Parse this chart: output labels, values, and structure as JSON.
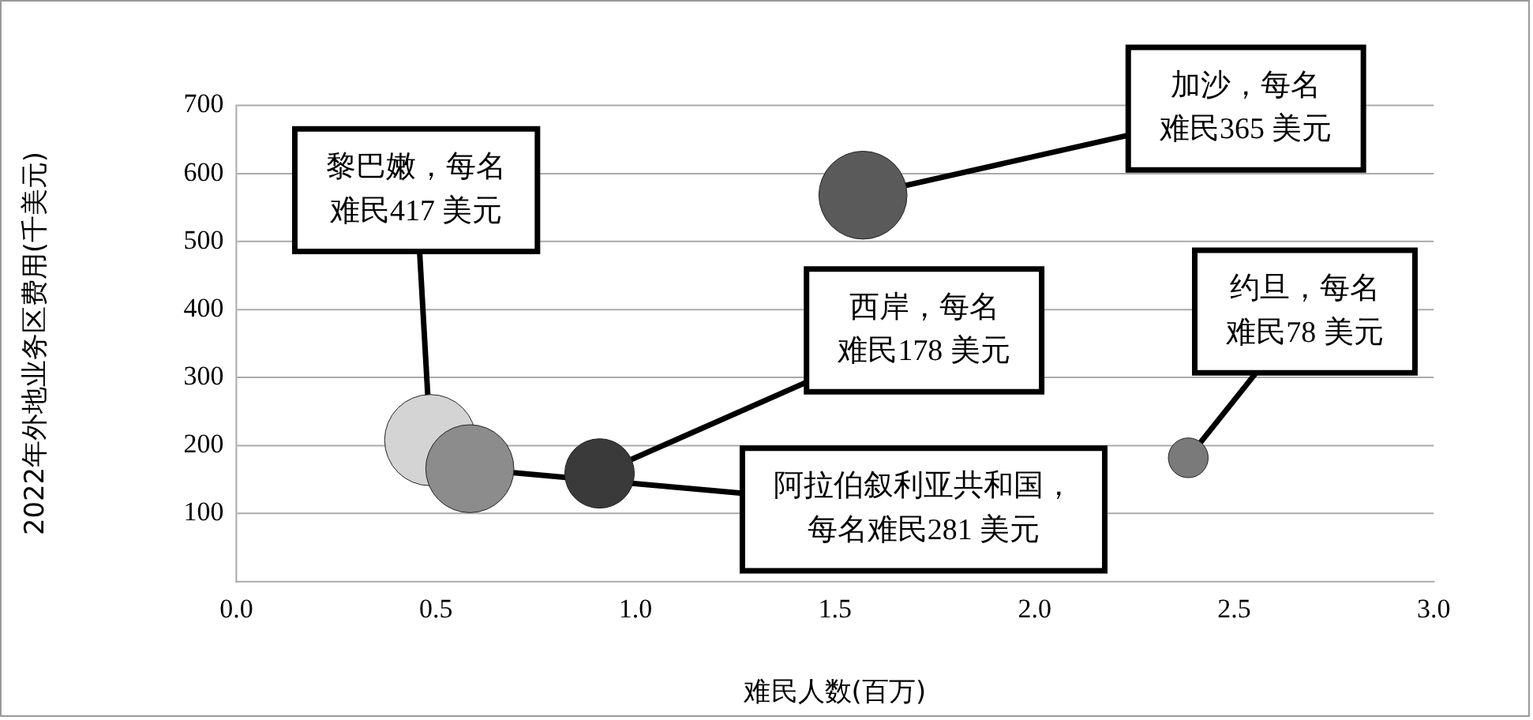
{
  "chart_data": {
    "type": "bubble",
    "xlabel": "难民人数(百万)",
    "ylabel": "2022年外地业务区费用(千美元)",
    "x": [
      0.486,
      0.585,
      0.91,
      1.57,
      2.385
    ],
    "values": [
      208,
      166,
      159,
      568,
      182
    ],
    "sizes": [
      1,
      0.93,
      0.58,
      0.93,
      0.19
    ],
    "colors": [
      "#d4d4d4",
      "#8c8c8c",
      "#3a3a3a",
      "#5a5a5a",
      "#7a7a7a"
    ],
    "xlim": [
      0,
      3
    ],
    "xticks": [
      {
        "value": 0,
        "label": "0.0"
      },
      {
        "value": 0.5,
        "label": "0.5"
      },
      {
        "value": 1,
        "label": "1.0"
      },
      {
        "value": 1.5,
        "label": "1.5"
      },
      {
        "value": 2,
        "label": "2.0"
      },
      {
        "value": 2.5,
        "label": "2.5"
      },
      {
        "value": 3,
        "label": "3.0"
      }
    ],
    "ylim": [
      0,
      700
    ],
    "yticks": [
      100,
      200,
      300,
      400,
      500,
      600,
      700
    ],
    "grid": "y",
    "legend": false,
    "annotations": [
      {
        "text": "黎巴嫩，每名难民417 美元",
        "x": 0.486,
        "y": 208
      },
      {
        "text": "阿拉伯叙利亚共和国，每名难民281 美元",
        "x": 0.585,
        "y": 166
      },
      {
        "text": "西岸，每名难民178 美元",
        "x": 0.91,
        "y": 159
      },
      {
        "text": "加沙，每名难民365 美元",
        "x": 1.57,
        "y": 568
      },
      {
        "text": "约旦，每名难民78 美元",
        "x": 2.385,
        "y": 182
      }
    ]
  }
}
